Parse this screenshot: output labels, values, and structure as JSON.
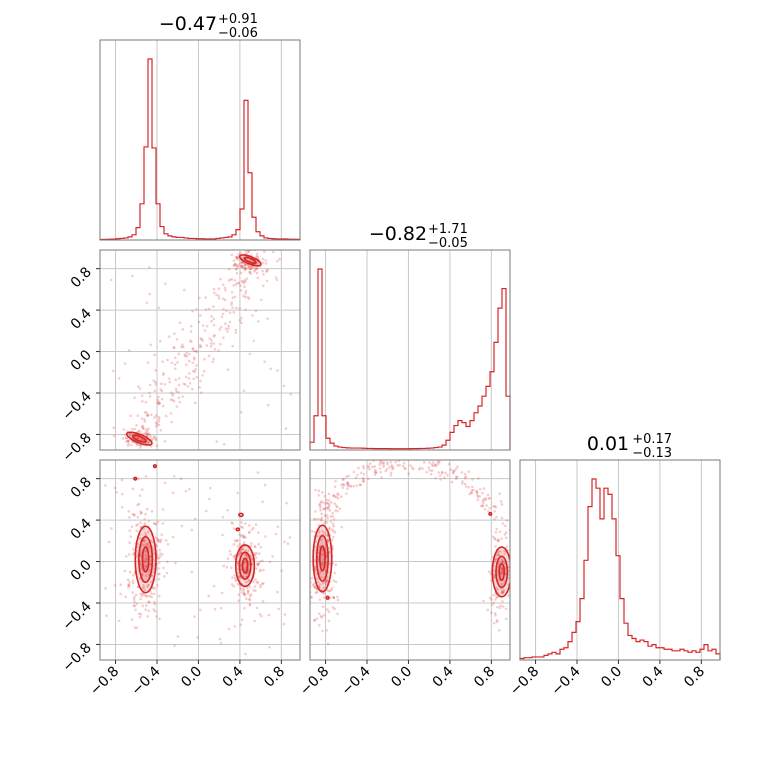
{
  "chart_data": {
    "type": "corner",
    "color": "#d62728",
    "tick_values": [
      -0.8,
      -0.4,
      0.0,
      0.4,
      0.8
    ],
    "tick_labels": [
      "−0.8",
      "−0.4",
      "0.0",
      "0.4",
      "0.8"
    ],
    "axis_range": [
      -0.95,
      0.98
    ],
    "grid": true,
    "params": [
      {
        "id": "p0",
        "title": {
          "main": "−0.47",
          "sup": "+0.91",
          "sub": "−0.06"
        },
        "hist_range": [
          -0.95,
          0.98
        ],
        "hist_counts": [
          0.5,
          0.6,
          0.8,
          0.9,
          1.2,
          1.5,
          2.0,
          3,
          5,
          12,
          35,
          90,
          175,
          89,
          35,
          13,
          6,
          4,
          3,
          2.5,
          2.5,
          2,
          1.5,
          1.5,
          1.2,
          1.2,
          1.0,
          1.0,
          1.0,
          1.5,
          2,
          2.5,
          3,
          5,
          10,
          30,
          135,
          65,
          22,
          8,
          4,
          2,
          1.5,
          1.2,
          1.0,
          1.0,
          1.0,
          0.8,
          0.8,
          0.6
        ]
      },
      {
        "id": "p1",
        "title": {
          "main": "−0.82",
          "sup": "+1.71",
          "sub": "−0.05"
        },
        "hist_range": [
          -0.95,
          0.98
        ],
        "hist_counts": [
          8,
          35,
          185,
          35,
          12,
          7,
          4,
          3,
          2.5,
          2.2,
          2,
          2,
          2,
          1.8,
          1.6,
          1.5,
          1.4,
          1.4,
          1.4,
          1.4,
          1.3,
          1.3,
          1.3,
          1.3,
          1.3,
          1.4,
          1.4,
          1.5,
          1.6,
          1.8,
          2,
          2.5,
          3,
          5,
          10,
          18,
          25,
          30,
          28,
          24,
          30,
          38,
          45,
          55,
          65,
          80,
          110,
          145,
          165,
          55
        ]
      },
      {
        "id": "p2",
        "title": {
          "main": "0.01",
          "sup": "+0.17",
          "sub": "−0.13"
        },
        "hist_range": [
          -0.95,
          0.98
        ],
        "hist_counts": [
          1,
          1.5,
          1.5,
          2,
          2,
          2,
          3,
          4,
          5,
          4,
          7,
          8,
          12,
          18,
          25,
          40,
          65,
          100,
          118,
          112,
          92,
          112,
          108,
          92,
          68,
          40,
          24,
          16,
          14,
          12,
          13,
          12,
          9,
          10,
          8,
          8,
          7,
          7,
          6,
          6,
          7,
          6,
          5,
          6,
          5,
          7,
          10,
          6,
          7,
          4
        ]
      }
    ]
  }
}
